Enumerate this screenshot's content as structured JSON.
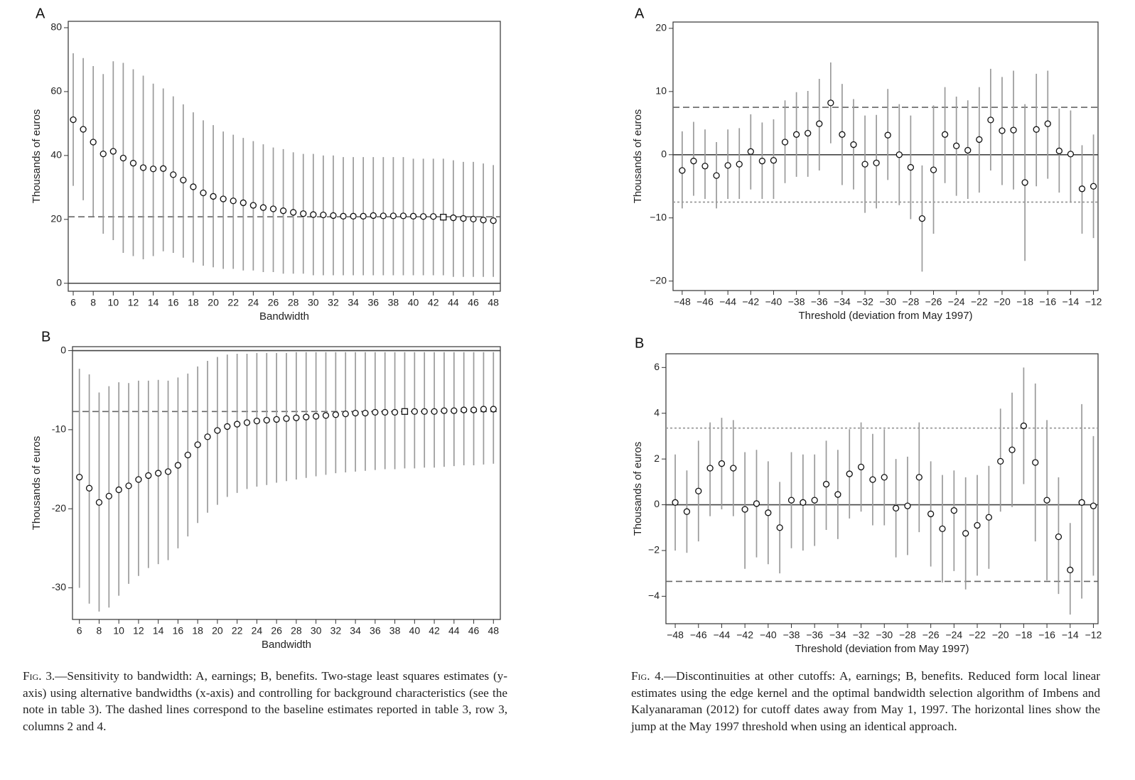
{
  "chart_data": [
    {
      "type": "scatter",
      "panel_label": "A",
      "xlabel": "Bandwidth",
      "ylabel": "Thousands of euros",
      "xlim": [
        5.5,
        48.7
      ],
      "ylim": [
        -2.5,
        82
      ],
      "xticks": [
        6,
        8,
        10,
        12,
        14,
        16,
        18,
        20,
        22,
        24,
        26,
        28,
        30,
        32,
        34,
        36,
        38,
        40,
        42,
        44,
        46,
        48
      ],
      "yticks": [
        0,
        20,
        40,
        60,
        80
      ],
      "zero_line": 0,
      "reference_lines": [
        {
          "y": 20.8,
          "style": "dashed"
        }
      ],
      "highlight_x": 43,
      "x": [
        6,
        7,
        8,
        9,
        10,
        11,
        12,
        13,
        14,
        15,
        16,
        17,
        18,
        19,
        20,
        21,
        22,
        23,
        24,
        25,
        26,
        27,
        28,
        29,
        30,
        31,
        32,
        33,
        34,
        35,
        36,
        37,
        38,
        39,
        40,
        41,
        42,
        43,
        44,
        45,
        46,
        47,
        48
      ],
      "y": [
        51.2,
        48.2,
        44.2,
        40.5,
        41.3,
        39.2,
        37.6,
        36.2,
        35.8,
        35.9,
        34.0,
        32.3,
        30.2,
        28.3,
        27.2,
        26.4,
        25.8,
        25.2,
        24.4,
        23.7,
        23.3,
        22.7,
        22.2,
        21.8,
        21.5,
        21.4,
        21.2,
        21.0,
        21.0,
        21.0,
        21.2,
        21.1,
        21.1,
        21.1,
        21.0,
        20.9,
        20.9,
        20.7,
        20.5,
        20.3,
        20.1,
        19.8,
        19.6
      ],
      "lower": [
        30.5,
        26.0,
        21.0,
        15.5,
        13.5,
        9.5,
        8.5,
        7.5,
        8.5,
        10.0,
        9.5,
        8.0,
        6.5,
        5.5,
        5.0,
        4.5,
        4.5,
        4.0,
        4.0,
        3.5,
        3.5,
        3.0,
        3.0,
        3.0,
        2.5,
        2.5,
        2.5,
        2.5,
        2.5,
        2.5,
        2.5,
        2.5,
        2.5,
        2.5,
        2.5,
        2.5,
        2.5,
        2.5,
        2.0,
        2.0,
        2.0,
        2.0,
        2.0
      ],
      "upper": [
        72.0,
        70.5,
        68.0,
        65.5,
        69.5,
        69.0,
        67.0,
        65.0,
        62.5,
        61.0,
        58.5,
        56.0,
        53.5,
        51.0,
        49.5,
        47.5,
        46.5,
        45.5,
        44.5,
        43.5,
        42.5,
        42.0,
        41.0,
        40.5,
        40.5,
        40.0,
        40.0,
        39.5,
        39.5,
        39.5,
        39.5,
        39.5,
        39.5,
        39.5,
        39.0,
        39.0,
        39.0,
        39.0,
        38.5,
        38.0,
        38.0,
        37.5,
        37.0
      ]
    },
    {
      "type": "scatter",
      "panel_label": "B",
      "xlabel": "Bandwidth",
      "ylabel": "Thousands of euros",
      "xlim": [
        5.3,
        48.7
      ],
      "ylim": [
        -34,
        0.5
      ],
      "xticks": [
        6,
        8,
        10,
        12,
        14,
        16,
        18,
        20,
        22,
        24,
        26,
        28,
        30,
        32,
        34,
        36,
        38,
        40,
        42,
        44,
        46,
        48
      ],
      "yticks": [
        -30,
        -20,
        -10,
        0
      ],
      "zero_line": 0,
      "reference_lines": [
        {
          "y": -7.7,
          "style": "dashed"
        }
      ],
      "highlight_x": 39,
      "x": [
        6,
        7,
        8,
        9,
        10,
        11,
        12,
        13,
        14,
        15,
        16,
        17,
        18,
        19,
        20,
        21,
        22,
        23,
        24,
        25,
        26,
        27,
        28,
        29,
        30,
        31,
        32,
        33,
        34,
        35,
        36,
        37,
        38,
        39,
        40,
        41,
        42,
        43,
        44,
        45,
        46,
        47,
        48
      ],
      "y": [
        -16.0,
        -17.4,
        -19.2,
        -18.4,
        -17.6,
        -17.1,
        -16.3,
        -15.8,
        -15.5,
        -15.3,
        -14.5,
        -13.2,
        -11.9,
        -10.9,
        -10.1,
        -9.6,
        -9.3,
        -9.1,
        -8.9,
        -8.8,
        -8.7,
        -8.6,
        -8.5,
        -8.4,
        -8.3,
        -8.2,
        -8.1,
        -8.0,
        -7.9,
        -7.9,
        -7.8,
        -7.8,
        -7.8,
        -7.7,
        -7.7,
        -7.7,
        -7.7,
        -7.6,
        -7.6,
        -7.5,
        -7.5,
        -7.4,
        -7.4
      ],
      "lower": [
        -30.0,
        -32.0,
        -33.0,
        -32.5,
        -31.0,
        -29.5,
        -28.5,
        -27.5,
        -27.0,
        -26.5,
        -25.0,
        -23.5,
        -21.8,
        -20.5,
        -19.5,
        -18.5,
        -18.0,
        -17.5,
        -17.2,
        -17.0,
        -16.7,
        -16.5,
        -16.3,
        -16.1,
        -15.9,
        -15.7,
        -15.5,
        -15.4,
        -15.3,
        -15.2,
        -15.1,
        -15.0,
        -15.0,
        -14.9,
        -14.9,
        -14.8,
        -14.8,
        -14.7,
        -14.6,
        -14.5,
        -14.5,
        -14.4,
        -14.3
      ],
      "upper": [
        -2.3,
        -3.0,
        -5.3,
        -4.5,
        -4.0,
        -4.1,
        -3.8,
        -3.8,
        -3.7,
        -3.8,
        -3.4,
        -2.9,
        -2.0,
        -1.3,
        -0.8,
        -0.5,
        -0.4,
        -0.4,
        -0.3,
        -0.3,
        -0.3,
        -0.3,
        -0.2,
        -0.2,
        -0.2,
        -0.2,
        -0.2,
        -0.2,
        -0.2,
        -0.2,
        -0.2,
        -0.2,
        -0.2,
        -0.2,
        -0.2,
        -0.2,
        -0.2,
        -0.2,
        -0.2,
        -0.2,
        -0.2,
        -0.2,
        -0.2
      ]
    },
    {
      "type": "scatter",
      "panel_label": "A",
      "xlabel": "Threshold (deviation from May 1997)",
      "ylabel": "Thousands of euros",
      "xlim": [
        -48.8,
        -11.6
      ],
      "ylim": [
        -21.5,
        21
      ],
      "xticks": [
        -48,
        -46,
        -44,
        -42,
        -40,
        -38,
        -36,
        -34,
        -32,
        -30,
        -28,
        -26,
        -24,
        -22,
        -20,
        -18,
        -16,
        -14,
        -12
      ],
      "xtick_labels": [
        "−48",
        "−46",
        "−44",
        "−42",
        "−40",
        "−38",
        "−36",
        "−34",
        "−32",
        "−30",
        "−28",
        "−26",
        "−24",
        "−22",
        "−20",
        "−18",
        "−16",
        "−14",
        "−12"
      ],
      "yticks": [
        -20,
        -10,
        0,
        10,
        20
      ],
      "ytick_labels": [
        "−20",
        "−10",
        "0",
        "10",
        "20"
      ],
      "zero_line": 0,
      "reference_lines": [
        {
          "y": 7.5,
          "style": "dashed"
        },
        {
          "y": -7.5,
          "style": "dotted"
        }
      ],
      "x": [
        -48,
        -47,
        -46,
        -45,
        -44,
        -43,
        -42,
        -41,
        -40,
        -39,
        -38,
        -37,
        -36,
        -35,
        -34,
        -33,
        -32,
        -31,
        -30,
        -29,
        -28,
        -27,
        -26,
        -25,
        -24,
        -23,
        -22,
        -21,
        -20,
        -19,
        -18,
        -17,
        -16,
        -15,
        -14,
        -13,
        -12
      ],
      "y": [
        -2.5,
        -1.0,
        -1.8,
        -3.3,
        -1.7,
        -1.5,
        0.5,
        -1.0,
        -0.9,
        2.0,
        3.2,
        3.4,
        4.9,
        8.2,
        3.2,
        1.6,
        -1.5,
        -1.3,
        3.1,
        0.0,
        -2.0,
        -10.1,
        -2.4,
        3.2,
        1.4,
        0.7,
        2.4,
        5.5,
        3.8,
        3.9,
        -4.4,
        4.0,
        4.9,
        0.6,
        0.1,
        -5.4,
        -5.0
      ],
      "lower": [
        -8.5,
        -6.5,
        -7.0,
        -8.5,
        -7.0,
        -7.0,
        -5.5,
        -7.0,
        -7.0,
        -4.5,
        -3.5,
        -3.5,
        -2.5,
        1.8,
        -4.8,
        -5.5,
        -9.2,
        -8.5,
        -4.0,
        -8.0,
        -10.2,
        -18.5,
        -12.5,
        -4.5,
        -6.5,
        -7.0,
        -6.0,
        -2.5,
        -4.8,
        -5.5,
        -16.8,
        -5.0,
        -3.8,
        -6.0,
        -7.5,
        -12.5,
        -13.2
      ],
      "upper": [
        3.7,
        5.2,
        4.0,
        2.0,
        4.0,
        4.2,
        6.4,
        5.1,
        5.6,
        8.6,
        9.9,
        10.1,
        12.0,
        14.6,
        11.2,
        8.8,
        6.2,
        6.3,
        10.4,
        8.0,
        6.2,
        -1.7,
        7.8,
        10.7,
        9.2,
        8.6,
        10.7,
        13.6,
        12.3,
        13.3,
        8.0,
        12.8,
        13.3,
        7.3,
        7.0,
        1.5,
        3.2
      ]
    },
    {
      "type": "scatter",
      "panel_label": "B",
      "xlabel": "Threshold (deviation from May 1997)",
      "ylabel": "Thousands of euros",
      "xlim": [
        -48.8,
        -11.6
      ],
      "ylim": [
        -5.2,
        6.6
      ],
      "xticks": [
        -48,
        -46,
        -44,
        -42,
        -40,
        -38,
        -36,
        -34,
        -32,
        -30,
        -28,
        -26,
        -24,
        -22,
        -20,
        -18,
        -16,
        -14,
        -12
      ],
      "xtick_labels": [
        "−48",
        "−46",
        "−44",
        "−42",
        "−40",
        "−38",
        "−36",
        "−34",
        "−32",
        "−30",
        "−28",
        "−26",
        "−24",
        "−22",
        "−20",
        "−18",
        "−16",
        "−14",
        "−12"
      ],
      "yticks": [
        -4,
        -2,
        0,
        2,
        4,
        6
      ],
      "ytick_labels": [
        "−4",
        "−2",
        "0",
        "2",
        "4",
        "6"
      ],
      "zero_line": 0,
      "reference_lines": [
        {
          "y": 3.35,
          "style": "dotted"
        },
        {
          "y": -3.35,
          "style": "dashed"
        }
      ],
      "x": [
        -48,
        -47,
        -46,
        -45,
        -44,
        -43,
        -42,
        -41,
        -40,
        -39,
        -38,
        -37,
        -36,
        -35,
        -34,
        -33,
        -32,
        -31,
        -30,
        -29,
        -28,
        -27,
        -26,
        -25,
        -24,
        -23,
        -22,
        -21,
        -20,
        -19,
        -18,
        -17,
        -16,
        -15,
        -14,
        -13,
        -12
      ],
      "y": [
        0.1,
        -0.3,
        0.6,
        1.6,
        1.8,
        1.6,
        -0.2,
        0.05,
        -0.35,
        -1.0,
        0.2,
        0.1,
        0.2,
        0.9,
        0.45,
        1.35,
        1.65,
        1.1,
        1.2,
        -0.15,
        -0.05,
        1.2,
        -0.4,
        -1.05,
        -0.25,
        -1.25,
        -0.9,
        -0.55,
        1.9,
        2.4,
        3.45,
        1.85,
        0.2,
        -1.4,
        -2.85,
        0.1,
        -0.05
      ],
      "lower": [
        -2.0,
        -2.1,
        -1.6,
        -0.5,
        -0.2,
        -0.5,
        -2.8,
        -2.3,
        -2.6,
        -3.0,
        -1.9,
        -2.0,
        -1.8,
        -1.1,
        -1.5,
        -0.6,
        -0.3,
        -0.9,
        -0.9,
        -2.3,
        -2.2,
        -1.2,
        -2.7,
        -3.4,
        -2.9,
        -3.7,
        -3.1,
        -2.8,
        -0.3,
        -0.1,
        0.9,
        -1.6,
        -3.3,
        -3.9,
        -4.8,
        -4.1,
        -3.1
      ],
      "upper": [
        2.2,
        1.5,
        2.8,
        3.6,
        3.8,
        3.7,
        2.3,
        2.4,
        1.9,
        1.0,
        2.3,
        2.2,
        2.2,
        2.8,
        2.4,
        3.3,
        3.6,
        3.1,
        3.3,
        2.0,
        2.1,
        3.6,
        1.9,
        1.3,
        1.5,
        1.2,
        1.3,
        1.7,
        4.2,
        4.9,
        6.0,
        5.3,
        3.7,
        1.2,
        -0.8,
        4.4,
        3.0
      ]
    }
  ],
  "captions": {
    "fig3": {
      "label": "Fig. 3.",
      "text": "—Sensitivity to bandwidth: A, earnings; B, benefits. Two-stage least squares estimates (y-axis) using alternative bandwidths (x-axis) and controlling for background characteristics (see the note in table 3). The dashed lines correspond to the baseline estimates reported in table 3, row 3, columns 2 and 4."
    },
    "fig4": {
      "label": "Fig. 4.",
      "text": "—Discontinuities at other cutoffs: A, earnings; B, benefits. Reduced form local linear estimates using the edge kernel and the optimal bandwidth selection algorithm of Imbens and Kalyanaraman (2012) for cutoff dates away from May 1, 1997. The horizontal lines show the jump at the May 1997 threshold when using an identical approach."
    }
  }
}
